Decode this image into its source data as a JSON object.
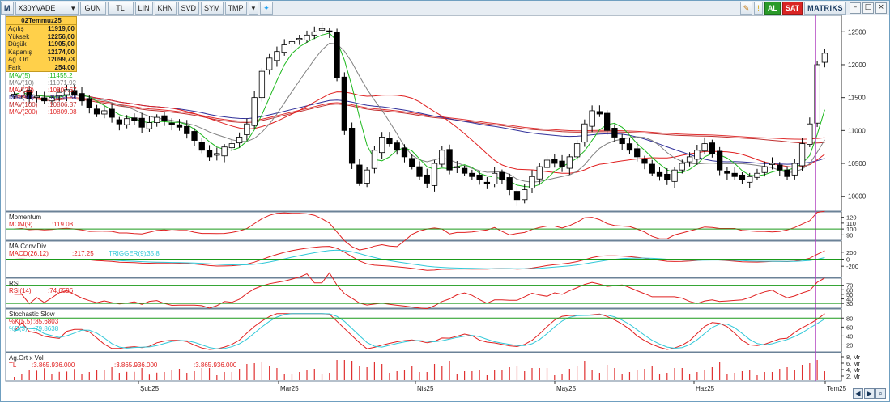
{
  "toolbar": {
    "logo": "M",
    "symbol": "X30YVADE",
    "period": "GUN",
    "currency": "TL",
    "scale": "LIN",
    "btn_khn": "KHN",
    "btn_svd": "SVD",
    "btn_sym": "SYM",
    "btn_tmp": "TMP",
    "buy": "AL",
    "sell": "SAT",
    "brand": "MATRIKS"
  },
  "ohlc": {
    "date": "02Temmuz25",
    "rows": [
      {
        "label": "Açılış",
        "value": "11919,00"
      },
      {
        "label": "Yüksek",
        "value": "12256,00"
      },
      {
        "label": "Düşük",
        "value": "11905,00"
      },
      {
        "label": "Kapanış",
        "value": "12174,00"
      },
      {
        "label": "Ağ. Ort",
        "value": "12099,73"
      },
      {
        "label": "Fark",
        "value": "254,00"
      }
    ]
  },
  "ma_legend": [
    {
      "label": "MAV(5)",
      "value": ":11455.2",
      "color": "#1db81d"
    },
    {
      "label": "MAV(10)",
      "value": ":11071.92",
      "color": "#808080"
    },
    {
      "label": "MAV(22)",
      "value": ":10807.67",
      "color": "#e02020"
    },
    {
      "label": "MAV(50)",
      "value": ":10734.84",
      "color": "#30309a"
    },
    {
      "label": "MAV(100)",
      "value": ":10806.37",
      "color": "#c03030"
    },
    {
      "label": "MAV(200)",
      "value": ":10809.08",
      "color": "#e03030"
    }
  ],
  "price_axis": [
    "12500",
    "12000",
    "11500",
    "11000",
    "10500",
    "10000"
  ],
  "panels": {
    "momentum": {
      "title": "Momentum",
      "label": "MOM(9)",
      "value": ":119.08",
      "axis": [
        "120",
        "110",
        "100",
        "90"
      ]
    },
    "macd": {
      "title": "MA.Conv.Div",
      "label": "MACD(26,12)",
      "value": ":217.25",
      "trigger_label": "TRIGGER(9)",
      "trigger_value": ":35.8",
      "axis": [
        "200",
        "0",
        "-200"
      ]
    },
    "rsi": {
      "title": "RSI",
      "label": "RSI(14)",
      "value": ":74.6596",
      "axis": [
        "70",
        "60",
        "50",
        "40",
        "30"
      ]
    },
    "stoch": {
      "title": "Stochastic Slow",
      "k_label": "%K(5,5)",
      "k_value": ":85.6803",
      "d_label": "%D(3)",
      "d_value": ":79.8638",
      "axis": [
        "80",
        "60",
        "40",
        "20"
      ]
    },
    "volume": {
      "title": "Ag.Ort x Vol",
      "label": "TL",
      "v1": ":3.865.936.000",
      "v2": ":3.865.936.000",
      "v3": ":3.865.936.000",
      "axis": [
        "8, Mr",
        "6, Mr",
        "4, Mr",
        "2, Mr"
      ]
    }
  },
  "x_axis": [
    "Şub25",
    "Mar25",
    "Nis25",
    "May25",
    "Haz25",
    "Tem25"
  ],
  "colors": {
    "up": "#ffffff",
    "down": "#000000",
    "ma5": "#1db81d",
    "ma10": "#808080",
    "ma22": "#e02020",
    "ma50": "#30309a",
    "ma100": "#c03030",
    "ma200": "#e03030",
    "signal": "#30c8d8",
    "volume": "#e03030",
    "cursor": "#b040c0"
  },
  "chart_data": {
    "type": "candlestick",
    "title": "X30YVADE",
    "x_labels": [
      "Şub25",
      "Mar25",
      "Nis25",
      "May25",
      "Haz25",
      "Tem25"
    ],
    "ylim": [
      9800,
      12700
    ],
    "closes": [
      11550,
      11600,
      11480,
      11520,
      11450,
      11500,
      11580,
      11620,
      11550,
      11450,
      11350,
      11250,
      11300,
      11200,
      11100,
      11180,
      11150,
      11050,
      11120,
      11200,
      11150,
      11100,
      11050,
      10950,
      10850,
      10700,
      10600,
      10650,
      10750,
      10800,
      10900,
      11100,
      11500,
      11900,
      12100,
      12200,
      12300,
      12350,
      12400,
      12450,
      12500,
      12550,
      12500,
      11800,
      11000,
      10500,
      10200,
      10400,
      10700,
      10900,
      10800,
      10700,
      10600,
      10450,
      10300,
      10200,
      10500,
      10700,
      10400,
      10450,
      10350,
      10300,
      10250,
      10200,
      10350,
      10250,
      10100,
      9950,
      10100,
      10300,
      10450,
      10550,
      10500,
      10450,
      10600,
      10800,
      11100,
      11300,
      11250,
      11000,
      10900,
      10800,
      10700,
      10600,
      10500,
      10350,
      10300,
      10250,
      10400,
      10500,
      10600,
      10700,
      10800,
      10650,
      10400,
      10350,
      10300,
      10250,
      10300,
      10350,
      10450,
      10500,
      10400,
      10300,
      10500,
      10800,
      11100,
      12000,
      12174
    ]
  }
}
